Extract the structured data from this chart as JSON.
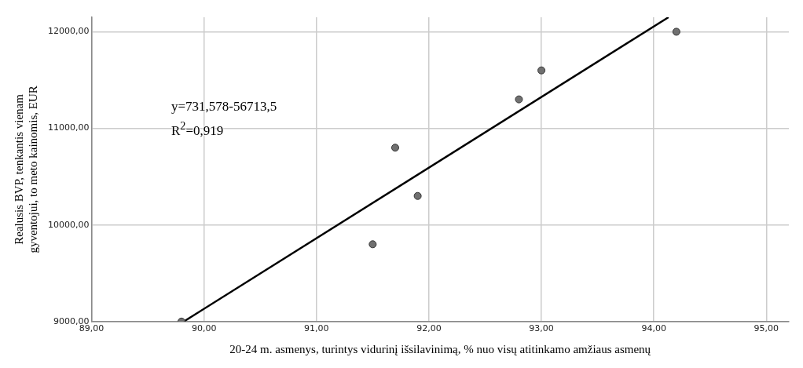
{
  "chart_data": {
    "type": "scatter",
    "xlabel": "20-24 m. asmenys, turintys vidurinį išsilavinimą, % nuo visų atitinkamo amžiaus asmenų",
    "ylabel": "Realusis BVP, tenkantis vienam gyventojui, to meto kainomis, EUR",
    "xlim": [
      89,
      95.2
    ],
    "ylim": [
      9000,
      12150
    ],
    "xticks": [
      {
        "value": 89,
        "label": "89,00"
      },
      {
        "value": 90,
        "label": "90,00"
      },
      {
        "value": 91,
        "label": "91,00"
      },
      {
        "value": 92,
        "label": "92,00"
      },
      {
        "value": 93,
        "label": "93,00"
      },
      {
        "value": 94,
        "label": "94,00"
      },
      {
        "value": 95,
        "label": "95,00"
      }
    ],
    "yticks": [
      {
        "value": 9000,
        "label": "9000,00"
      },
      {
        "value": 10000,
        "label": "10000,00"
      },
      {
        "value": 11000,
        "label": "11000,00"
      },
      {
        "value": 12000,
        "label": "12000,00"
      }
    ],
    "grid": true,
    "legend": false,
    "marker": "circle",
    "series": [
      {
        "type": "scatter",
        "color": "#707070",
        "x": [
          89.8,
          91.5,
          91.7,
          91.9,
          92.8,
          93.0,
          94.2
        ],
        "values": [
          9000,
          9800,
          10800,
          10300,
          11300,
          11600,
          12000
        ]
      },
      {
        "type": "line",
        "color": "#000000",
        "marker": "none",
        "line_style": "solid",
        "x": [
          89.82,
          94.13
        ],
        "values": [
          9000,
          12150
        ]
      }
    ],
    "annotations": [
      "y=731,578-56713,5",
      "R$^{2}$=0,919"
    ]
  }
}
